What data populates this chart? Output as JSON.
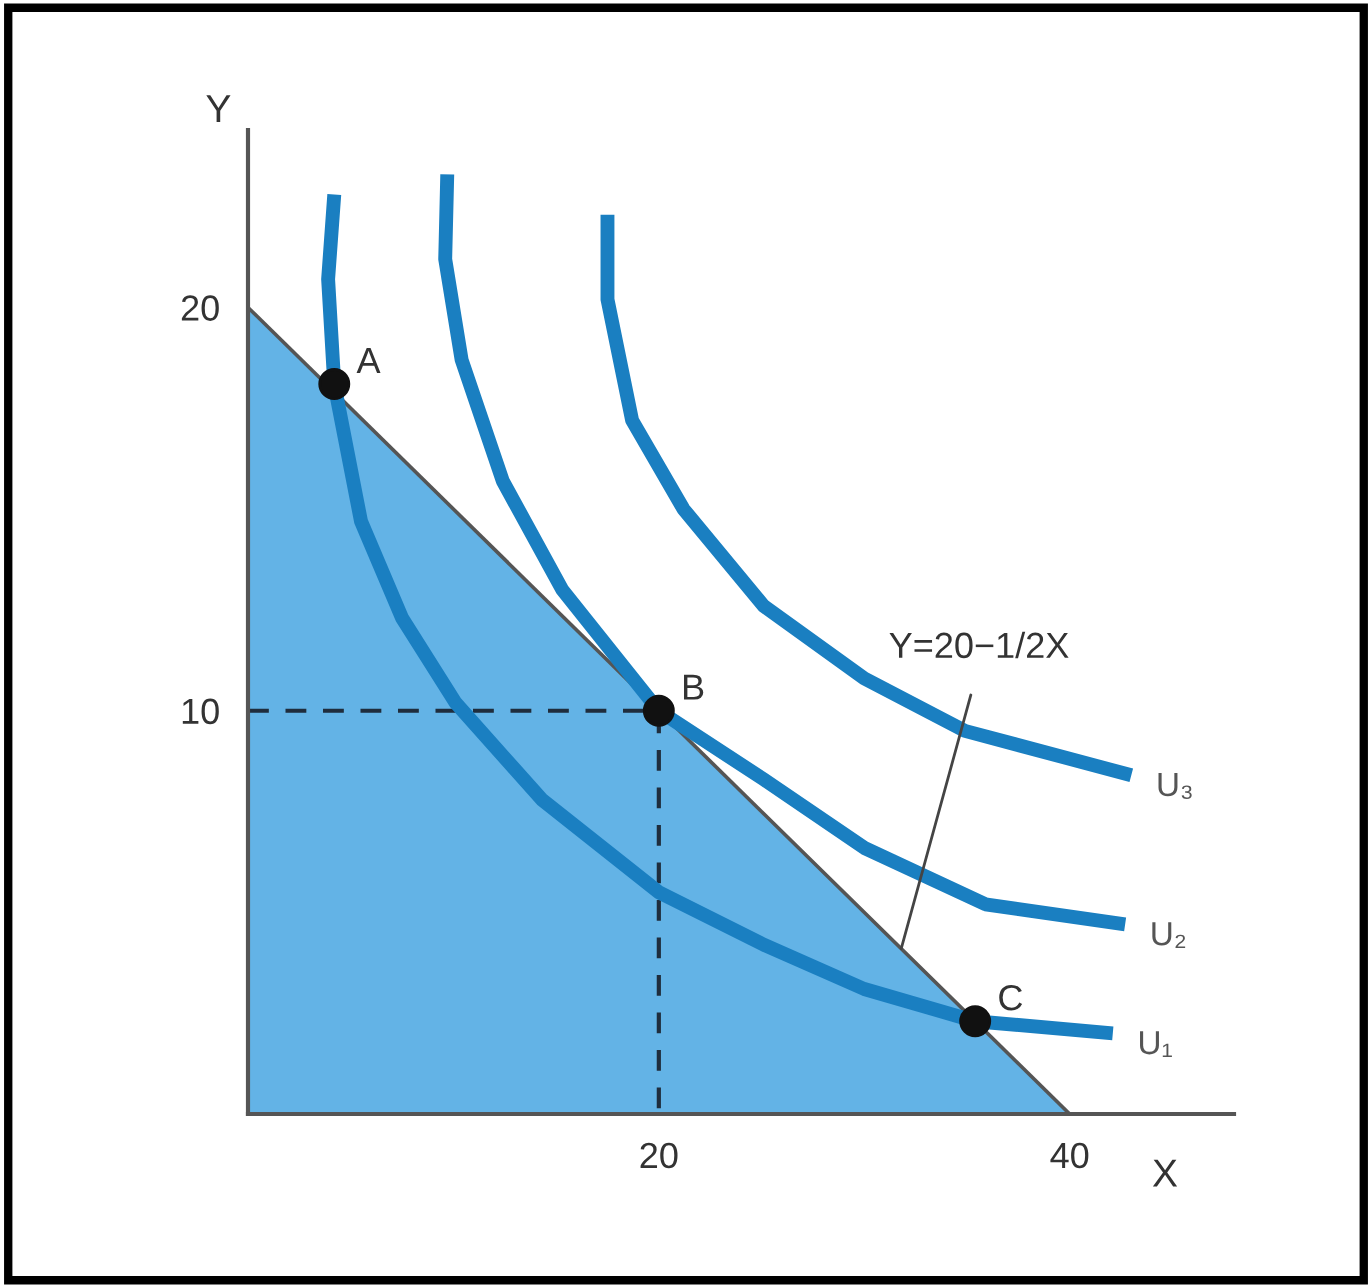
{
  "chart_data": {
    "type": "line",
    "xlabel": "X",
    "ylabel": "Y",
    "xlim": [
      0,
      48
    ],
    "ylim": [
      0,
      24.4
    ],
    "xticks": [
      20,
      40
    ],
    "yticks": [
      10,
      20
    ],
    "grid": false,
    "series": [
      {
        "type": "area",
        "color": "#63b3e6",
        "x": [
          0,
          40
        ],
        "values": [
          20,
          0
        ]
      },
      {
        "type": "line",
        "line_style": "dashed",
        "color": "#1f2d3d",
        "x": [
          0,
          20,
          20
        ],
        "values": [
          10,
          10,
          0
        ]
      },
      {
        "name": "U₁",
        "color": "#1a7fc1",
        "x": [
          4.2,
          3.9,
          4.2,
          5.5,
          7.5,
          10.1,
          14.3,
          20,
          25.1,
          30,
          35.4,
          42.1
        ],
        "values": [
          22.8,
          20.7,
          18.1,
          14.7,
          12.3,
          10.2,
          7.8,
          5.5,
          4.2,
          3.1,
          2.3,
          2.0
        ]
      },
      {
        "name": "U₂",
        "color": "#1a7fc1",
        "x": [
          9.7,
          9.6,
          10.4,
          12.4,
          15.3,
          20,
          25.1,
          30,
          35.9,
          42.7
        ],
        "values": [
          23.3,
          21.2,
          18.7,
          15.7,
          13.0,
          10,
          8.3,
          6.6,
          5.2,
          4.7
        ]
      },
      {
        "name": "U₃",
        "color": "#1a7fc1",
        "x": [
          17.5,
          17.5,
          18.7,
          21.2,
          25.1,
          30,
          34.9,
          43.0
        ],
        "values": [
          22.3,
          20.2,
          17.2,
          15.0,
          12.6,
          10.8,
          9.5,
          8.4
        ]
      },
      {
        "type": "scatter",
        "marker": "circle",
        "color": "#111111",
        "x": [
          4.2,
          20,
          35.4
        ],
        "values": [
          18.1,
          10,
          2.3
        ]
      }
    ],
    "annotations": [
      {
        "text": "A",
        "x": 4.2,
        "y": 18.1
      },
      {
        "text": "B",
        "x": 20,
        "y": 10
      },
      {
        "text": "C",
        "x": 35.4,
        "y": 2.3
      },
      {
        "text": "Y=20−1/2X",
        "x": 31.8,
        "y": 4.1
      }
    ]
  }
}
